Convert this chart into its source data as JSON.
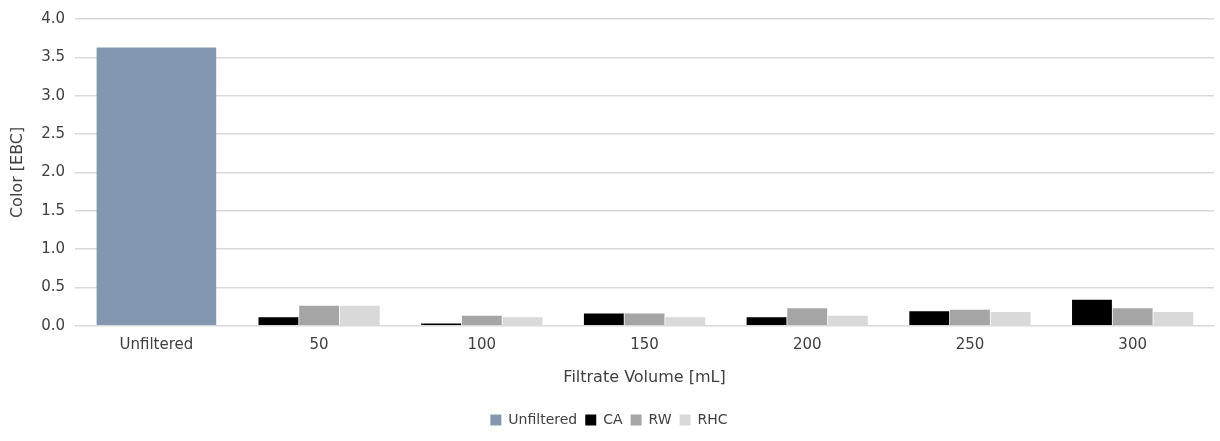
{
  "chart_data": {
    "type": "bar",
    "xlabel": "Filtrate Volume [mL]",
    "ylabel": "Color [EBC]",
    "categories": [
      "Unfiltered",
      "50",
      "100",
      "150",
      "200",
      "250",
      "300"
    ],
    "series": [
      {
        "name": "Unfiltered",
        "color": "#8497b0",
        "values": [
          3.63,
          null,
          null,
          null,
          null,
          null,
          null
        ]
      },
      {
        "name": "CA",
        "color": "#000000",
        "values": [
          null,
          0.11,
          0.03,
          0.16,
          0.11,
          0.19,
          0.34
        ]
      },
      {
        "name": "RW",
        "color": "#a5a5a5",
        "values": [
          null,
          0.26,
          0.13,
          0.16,
          0.23,
          0.21,
          0.23
        ]
      },
      {
        "name": "RHC",
        "color": "#d9d9d9",
        "values": [
          null,
          0.26,
          0.11,
          0.11,
          0.13,
          0.18,
          0.18
        ]
      }
    ],
    "ylim": [
      0,
      4
    ],
    "yticks": [
      {
        "value": 0,
        "label": "0.0"
      },
      {
        "value": 0.5,
        "label": "0.5"
      },
      {
        "value": 1,
        "label": "1.0"
      },
      {
        "value": 1.5,
        "label": "1.5"
      },
      {
        "value": 2,
        "label": "2.0"
      },
      {
        "value": 2.5,
        "label": "2.5"
      },
      {
        "value": 3,
        "label": "3.0"
      },
      {
        "value": 3.5,
        "label": "3.5"
      },
      {
        "value": 4,
        "label": "4.0"
      }
    ],
    "grid": "y",
    "legend": "bottom"
  }
}
